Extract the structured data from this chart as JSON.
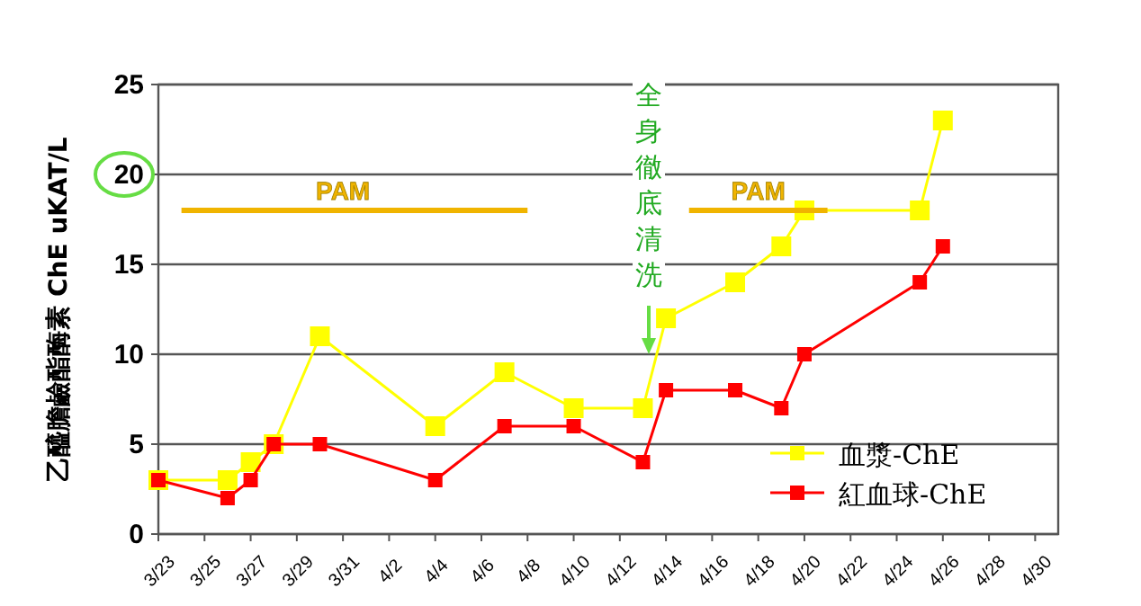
{
  "chart_data": {
    "type": "line",
    "ylabel": "乙醯膽鹼酯酶素 ChE uKAT/L",
    "x": [
      "--03-23",
      "--03-26",
      "--03-27",
      "--03-28",
      "--03-30",
      "--04-04",
      "--04-07",
      "--04-10",
      "--04-13",
      "--04-14",
      "--04-17",
      "--04-19",
      "--04-20",
      "--04-25",
      "--04-26"
    ],
    "series": [
      {
        "name": "血漿-ChE",
        "color": "#ffff00",
        "values": [
          3,
          3,
          4,
          5,
          11,
          6,
          9,
          7,
          7,
          12,
          14,
          16,
          18,
          18,
          23
        ]
      },
      {
        "name": "紅血球-ChE",
        "color": "#ff0000",
        "values": [
          3,
          2,
          3,
          5,
          5,
          3,
          6,
          6,
          4,
          8,
          8,
          7,
          10,
          14,
          16
        ]
      },
      {
        "color": "#f0b400",
        "marker": "none",
        "x": [
          "--03-24",
          "--04-08"
        ],
        "values": [
          18,
          18
        ]
      },
      {
        "color": "#f0b400",
        "marker": "none",
        "x": [
          "--04-15",
          "--04-21"
        ],
        "values": [
          18,
          18
        ]
      }
    ],
    "xlim": [
      "--03-23",
      "--05-01"
    ],
    "xticks": [
      {
        "value": "--03-23",
        "label": "3/23"
      },
      {
        "value": "--03-25",
        "label": "3/25"
      },
      {
        "value": "--03-27",
        "label": "3/27"
      },
      {
        "value": "--03-29",
        "label": "3/29"
      },
      {
        "value": "--03-31",
        "label": "3/31"
      },
      {
        "value": "--04-02",
        "label": "4/2"
      },
      {
        "value": "--04-04",
        "label": "4/4"
      },
      {
        "value": "--04-06",
        "label": "4/6"
      },
      {
        "value": "--04-08",
        "label": "4/8"
      },
      {
        "value": "--04-10",
        "label": "4/10"
      },
      {
        "value": "--04-12",
        "label": "4/12"
      },
      {
        "value": "--04-14",
        "label": "4/14"
      },
      {
        "value": "--04-16",
        "label": "4/16"
      },
      {
        "value": "--04-18",
        "label": "4/18"
      },
      {
        "value": "--04-20",
        "label": "4/20"
      },
      {
        "value": "--04-22",
        "label": "4/22"
      },
      {
        "value": "--04-24",
        "label": "4/24"
      },
      {
        "value": "--04-26",
        "label": "4/26"
      },
      {
        "value": "--04-28",
        "label": "4/28"
      },
      {
        "value": "--04-30",
        "label": "4/30"
      }
    ],
    "ylim": [
      0,
      25
    ],
    "yticks": [
      0,
      5,
      10,
      15,
      20,
      25
    ],
    "annotations": [
      {
        "text": "PAM",
        "x": "--03-31",
        "y": 18
      },
      {
        "text": "PAM",
        "x": "--04-18",
        "y": 18
      },
      "全身徹底清洗"
    ],
    "grid": "y",
    "legend": "bottom right",
    "marker": "square",
    "line_style": "solid"
  }
}
